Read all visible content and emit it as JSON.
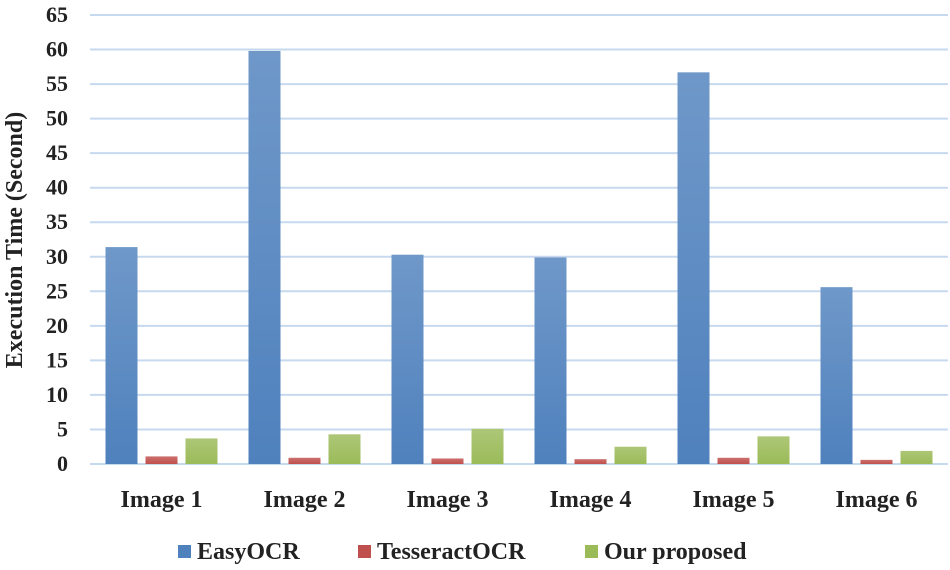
{
  "chart_data": {
    "type": "bar",
    "title": "",
    "xlabel": "",
    "ylabel": "Execution Time (Second)",
    "ylim": [
      0,
      65
    ],
    "yticks": [
      0,
      5,
      10,
      15,
      20,
      25,
      30,
      35,
      40,
      45,
      50,
      55,
      60,
      65
    ],
    "grid": true,
    "legend_position": "bottom",
    "categories": [
      "Image 1",
      "Image 2",
      "Image 3",
      "Image 4",
      "Image 5",
      "Image 6"
    ],
    "series": [
      {
        "name": "EasyOCR",
        "color": "#4f81bd",
        "values": [
          31.4,
          59.8,
          30.3,
          29.9,
          56.7,
          25.6
        ]
      },
      {
        "name": "TesseractOCR",
        "color": "#c0504d",
        "values": [
          1.1,
          0.9,
          0.8,
          0.7,
          0.9,
          0.6
        ]
      },
      {
        "name": "Our proposed",
        "color": "#9bbb59",
        "values": [
          3.7,
          4.3,
          5.1,
          2.5,
          4.0,
          1.9
        ]
      }
    ]
  }
}
